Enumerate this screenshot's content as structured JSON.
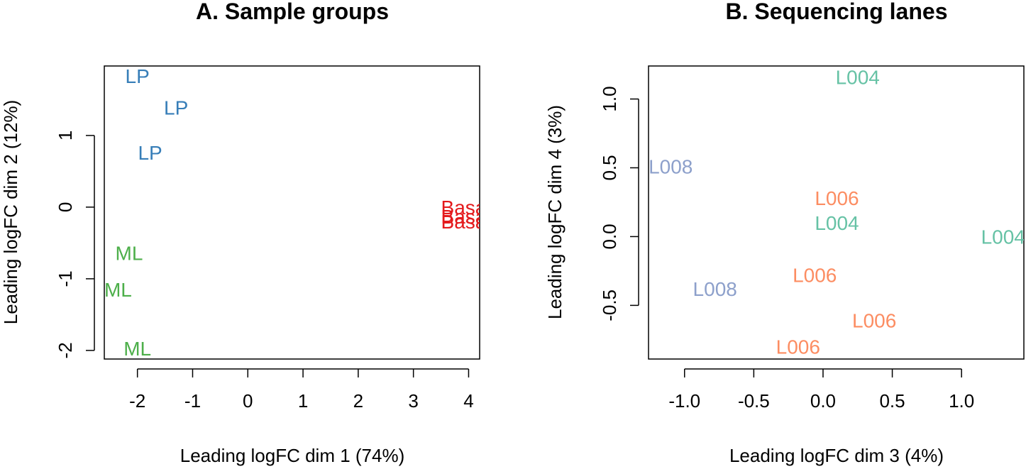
{
  "chart_data": [
    {
      "type": "scatter",
      "title": "A. Sample groups",
      "xlabel": "Leading logFC dim 1 (74%)",
      "ylabel": "Leading logFC dim 2 (12%)",
      "xlim": [
        -2.6,
        4.2
      ],
      "ylim": [
        -2.12,
        1.97
      ],
      "xticks": [
        "-2",
        "-1",
        "0",
        "1",
        "2",
        "3",
        "4"
      ],
      "yticks": [
        "-2",
        "-1",
        "0",
        "1"
      ],
      "series": [
        {
          "color": "#377eb8",
          "points": [
            {
              "label": "LP",
              "x": -2.0,
              "y": 1.83
            },
            {
              "label": "LP",
              "x": -1.3,
              "y": 1.39
            },
            {
              "label": "LP",
              "x": -1.77,
              "y": 0.76
            }
          ]
        },
        {
          "color": "#4daf4a",
          "points": [
            {
              "label": "ML",
              "x": -2.15,
              "y": -0.64
            },
            {
              "label": "ML",
              "x": -2.35,
              "y": -1.15
            },
            {
              "label": "ML",
              "x": -2.0,
              "y": -1.97
            }
          ]
        },
        {
          "color": "#e41a1c",
          "points": [
            {
              "label": "Basal",
              "x": 3.95,
              "y": 0.0
            },
            {
              "label": "Basal",
              "x": 3.95,
              "y": -0.13
            },
            {
              "label": "Basal",
              "x": 3.95,
              "y": -0.2
            }
          ]
        }
      ]
    },
    {
      "type": "scatter",
      "title": "B. Sequencing lanes",
      "xlabel": "Leading logFC dim 3 (4%)",
      "ylabel": "Leading logFC dim 4 (3%)",
      "xlim": [
        -1.26,
        1.45
      ],
      "ylim": [
        -0.89,
        1.24
      ],
      "xticks": [
        "-1.0",
        "-0.5",
        "0.0",
        "0.5",
        "1.0"
      ],
      "yticks": [
        "-0.5",
        "0.0",
        "0.5",
        "1.0"
      ],
      "series": [
        {
          "color": "#66c2a5",
          "points": [
            {
              "label": "L004",
              "x": 0.25,
              "y": 1.16
            },
            {
              "label": "L004",
              "x": 0.1,
              "y": 0.1
            },
            {
              "label": "L004",
              "x": 1.3,
              "y": 0.0
            }
          ]
        },
        {
          "color": "#8da0cb",
          "points": [
            {
              "label": "L008",
              "x": -1.1,
              "y": 0.51
            },
            {
              "label": "L008",
              "x": -0.78,
              "y": -0.38
            }
          ]
        },
        {
          "color": "#fc8d62",
          "points": [
            {
              "label": "L006",
              "x": 0.1,
              "y": 0.28
            },
            {
              "label": "L006",
              "x": -0.06,
              "y": -0.28
            },
            {
              "label": "L006",
              "x": 0.37,
              "y": -0.61
            },
            {
              "label": "L006",
              "x": -0.18,
              "y": -0.8
            }
          ]
        }
      ]
    }
  ]
}
